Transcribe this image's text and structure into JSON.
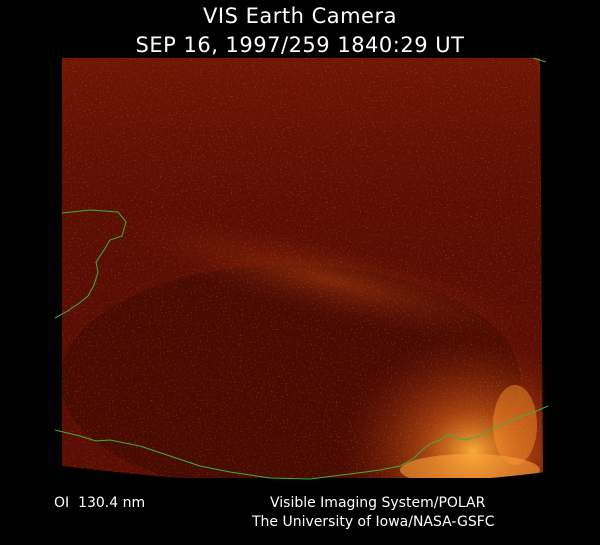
{
  "header": {
    "title": "VIS Earth Camera",
    "timestamp": "SEP 16, 1997/259 1840:29 UT"
  },
  "footer": {
    "wavelength": "OI  130.4 nm",
    "instrument": "Visible Imaging System/POLAR",
    "credit": "The University of Iowa/NASA-GSFC"
  },
  "colors": {
    "background": "#000000",
    "image_base": "#5a0d03",
    "glow": "#ff8a1f",
    "coastline": "#3fae3f",
    "text": "#ffffff"
  }
}
